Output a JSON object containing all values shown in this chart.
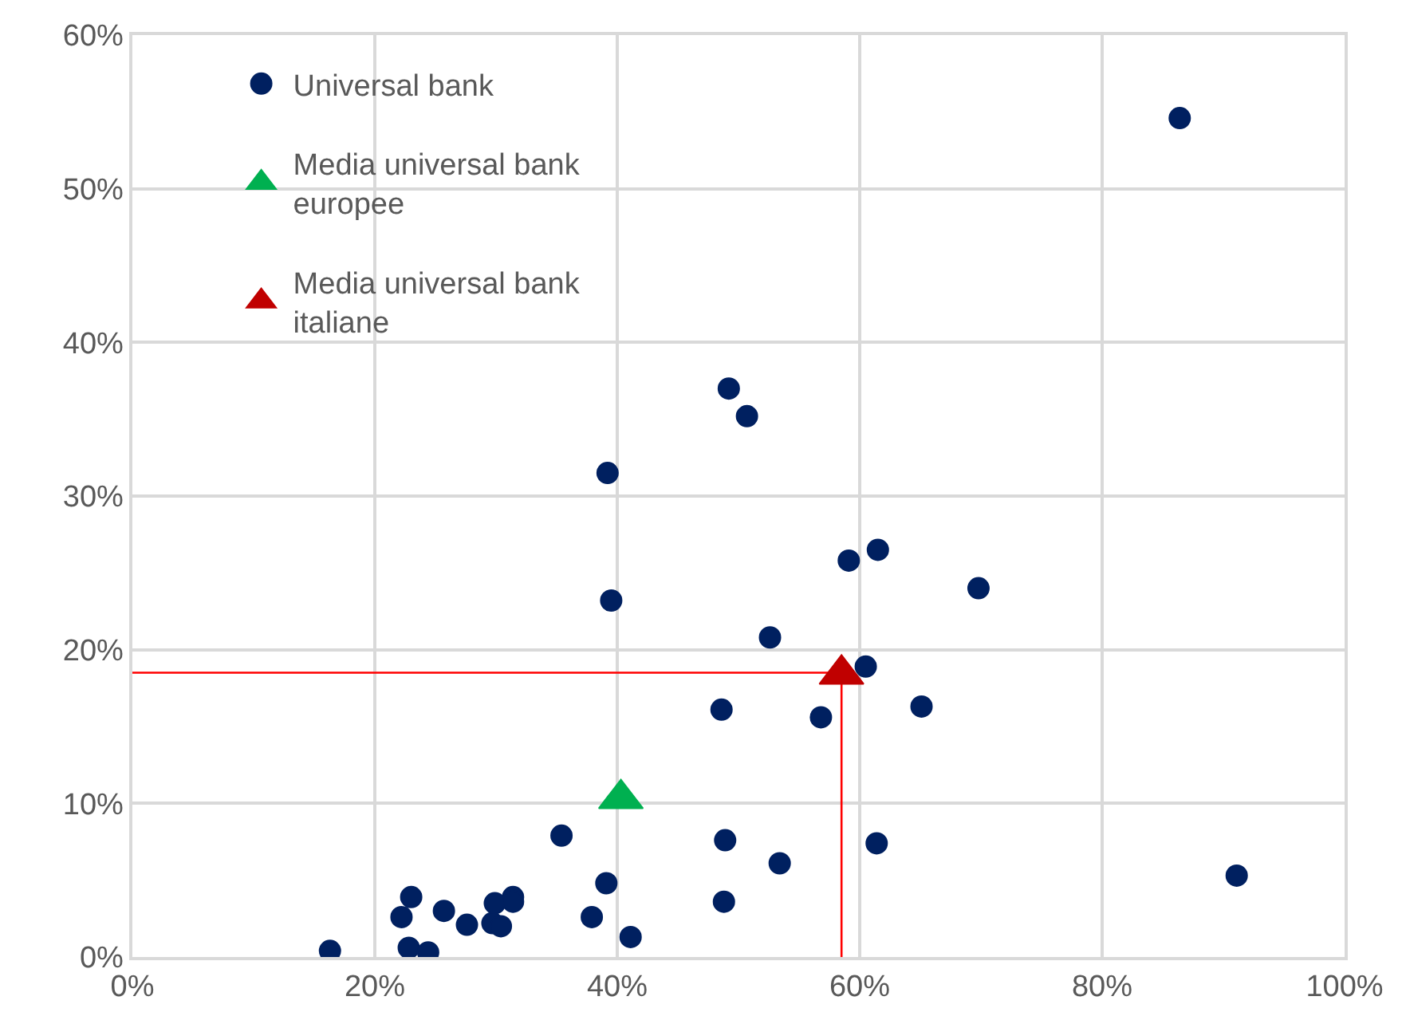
{
  "chart_data": {
    "type": "scatter",
    "xlim": [
      0,
      100
    ],
    "ylim": [
      0,
      60
    ],
    "xticks": [
      {
        "value": 0,
        "label": "0%"
      },
      {
        "value": 20,
        "label": "20%"
      },
      {
        "value": 40,
        "label": "40%"
      },
      {
        "value": 60,
        "label": "60%"
      },
      {
        "value": 80,
        "label": "80%"
      },
      {
        "value": 100,
        "label": "100%"
      }
    ],
    "yticks": [
      {
        "value": 0,
        "label": "0%"
      },
      {
        "value": 10,
        "label": "10%"
      },
      {
        "value": 20,
        "label": "20%"
      },
      {
        "value": 30,
        "label": "30%"
      },
      {
        "value": 40,
        "label": "40%"
      },
      {
        "value": 50,
        "label": "50%"
      },
      {
        "value": 60,
        "label": "60%"
      }
    ],
    "grid": true,
    "legend": "top left",
    "series": [
      {
        "type": "line",
        "color": "#ff0000",
        "marker": "none",
        "line_style": "solid",
        "x": [
          0,
          58.5,
          58.5
        ],
        "values": [
          18.5,
          18.5,
          0
        ]
      },
      {
        "name": "Universal bank",
        "marker": "circle",
        "color": "#002060",
        "x": [
          16.3,
          22.2,
          23.0,
          22.8,
          24.4,
          25.7,
          27.6,
          29.9,
          29.7,
          30.4,
          31.4,
          31.4,
          35.4,
          37.9,
          39.1,
          41.1,
          39.2,
          39.5,
          49.2,
          50.7,
          48.6,
          52.6,
          48.9,
          48.8,
          53.4,
          56.8,
          59.1,
          61.5,
          60.5,
          65.1,
          61.4,
          69.8,
          86.4,
          91.1
        ],
        "values": [
          0.4,
          2.6,
          3.9,
          0.6,
          0.3,
          3.0,
          2.1,
          3.5,
          2.2,
          2.0,
          3.9,
          3.6,
          7.9,
          2.6,
          4.8,
          1.3,
          31.5,
          23.2,
          37.0,
          35.2,
          16.1,
          20.8,
          7.6,
          3.6,
          6.1,
          15.6,
          25.8,
          26.5,
          18.9,
          16.3,
          7.4,
          24.0,
          54.6,
          5.3
        ]
      },
      {
        "name": "Media universal bank europee",
        "marker": "triangle",
        "color": "#00b050",
        "x": [
          40.3
        ],
        "values": [
          10.3
        ]
      },
      {
        "name": "Media universal bank italiane",
        "marker": "triangle",
        "color": "#c00000",
        "x": [
          58.5
        ],
        "values": [
          18.4
        ]
      }
    ]
  }
}
